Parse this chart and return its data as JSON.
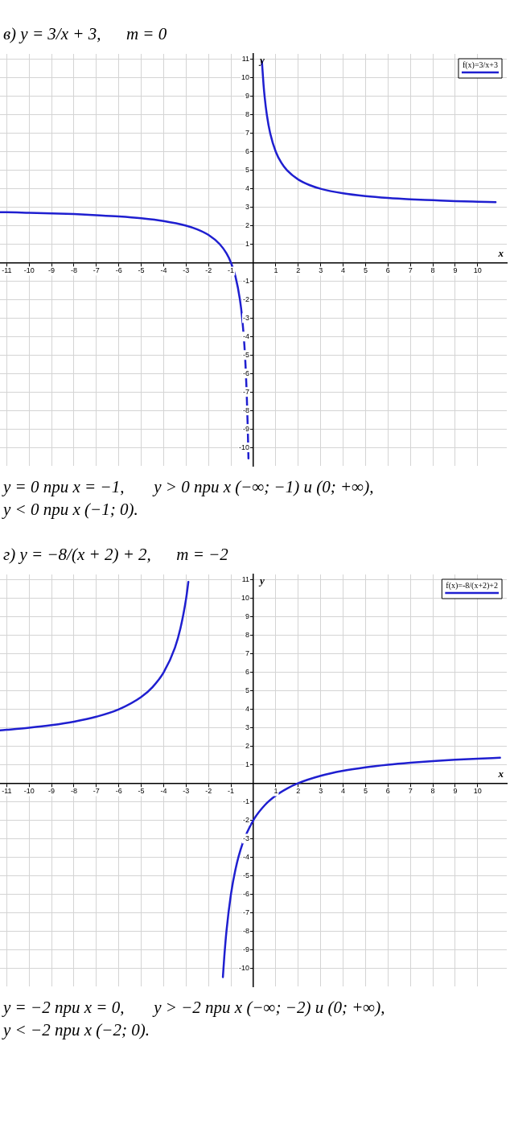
{
  "chart_data": [
    {
      "type": "line",
      "title": "в) y = 3/x + 3,      m = 0",
      "xlabel": "x",
      "ylabel": "y",
      "xlim": [
        -11.3,
        11.3
      ],
      "ylim": [
        -11,
        11.3
      ],
      "xticks": [
        -11,
        -10,
        -9,
        -8,
        -7,
        -6,
        -5,
        -4,
        -3,
        -2,
        -1,
        1,
        2,
        3,
        4,
        5,
        6,
        7,
        8,
        9,
        10
      ],
      "yticks": [
        -10,
        -9,
        -8,
        -7,
        -6,
        -5,
        -4,
        -3,
        -2,
        -1,
        1,
        2,
        3,
        4,
        5,
        6,
        7,
        8,
        9,
        10,
        11
      ],
      "grid": true,
      "legend": "top right",
      "marker": "none",
      "line_style": "solid",
      "series": [
        {
          "name": "f(x)=3/x+3",
          "color": "#1f1fd0",
          "x": [
            -11.3,
            -11,
            -10,
            -9,
            -8,
            -7,
            -6,
            -5,
            -4,
            -3,
            -2.5,
            -2,
            -1.5,
            -1.2,
            -1,
            -0.8,
            -0.6,
            -0.5,
            -0.4,
            -0.35,
            -0.3,
            -0.25,
            -0.22,
            0,
            0.38,
            0.45,
            0.5,
            0.6,
            0.75,
            1,
            1.25,
            1.5,
            2,
            2.5,
            3,
            4,
            5,
            6,
            7,
            8,
            9,
            10,
            10.8
          ],
          "values": [
            2.73,
            2.73,
            2.7,
            2.67,
            2.63,
            2.57,
            2.5,
            2.4,
            2.25,
            2,
            1.8,
            1.5,
            1,
            0.5,
            0,
            -0.75,
            -2,
            -3,
            -4.5,
            -5.57,
            -7,
            -9,
            -10.6,
            null,
            10.9,
            9.67,
            9,
            8,
            7,
            6,
            5.4,
            5,
            4.5,
            4.2,
            4,
            3.75,
            3.6,
            3.5,
            3.43,
            3.38,
            3.33,
            3.3,
            3.28
          ]
        }
      ],
      "annotations": [
        "y = 0 при x = −1,       y > 0 при x (−∞; −1) и (0; +∞),",
        "y < 0 при x (−1; 0)."
      ]
    },
    {
      "type": "line",
      "title": "г) y = −8/(x + 2) + 2,      m = −2",
      "xlabel": "x",
      "ylabel": "y",
      "xlim": [
        -11.3,
        11.3
      ],
      "ylim": [
        -11,
        11.3
      ],
      "xticks": [
        -11,
        -10,
        -9,
        -8,
        -7,
        -6,
        -5,
        -4,
        -3,
        -2,
        -1,
        1,
        2,
        3,
        4,
        5,
        6,
        7,
        8,
        9,
        10
      ],
      "yticks": [
        -10,
        -9,
        -8,
        -7,
        -6,
        -5,
        -4,
        -3,
        -2,
        -1,
        1,
        2,
        3,
        4,
        5,
        6,
        7,
        8,
        9,
        10,
        11
      ],
      "grid": true,
      "legend": "top right",
      "marker": "none",
      "line_style": "solid",
      "series": [
        {
          "name": "f(x)=-8/(x+2)+2",
          "color": "#1f1fd0",
          "x": [
            -11.3,
            -11,
            -10,
            -9,
            -8,
            -7,
            -6,
            -5,
            -4.5,
            -4,
            -3.5,
            -3.25,
            -3,
            -2.9,
            -2,
            -1.36,
            -1.3,
            -1.2,
            -1,
            -0.8,
            -0.5,
            0,
            0.5,
            1,
            1.5,
            2,
            3,
            4,
            5,
            6,
            7,
            8,
            9,
            10,
            11
          ],
          "values": [
            2.86,
            2.89,
            3,
            3.14,
            3.33,
            3.6,
            4,
            4.67,
            5.2,
            6,
            7.33,
            8.4,
            10,
            10.9,
            null,
            -10.5,
            -9.43,
            -8,
            -6,
            -4.67,
            -3.33,
            -2,
            -1.2,
            -0.67,
            -0.29,
            0,
            0.4,
            0.67,
            0.86,
            1,
            1.11,
            1.2,
            1.27,
            1.33,
            1.38
          ]
        }
      ],
      "annotations": [
        "y = −2 при x = 0,       y > −2 при x (−∞; −2) и (0; +∞),",
        "y < −2 при x (−2; 0)."
      ]
    }
  ]
}
